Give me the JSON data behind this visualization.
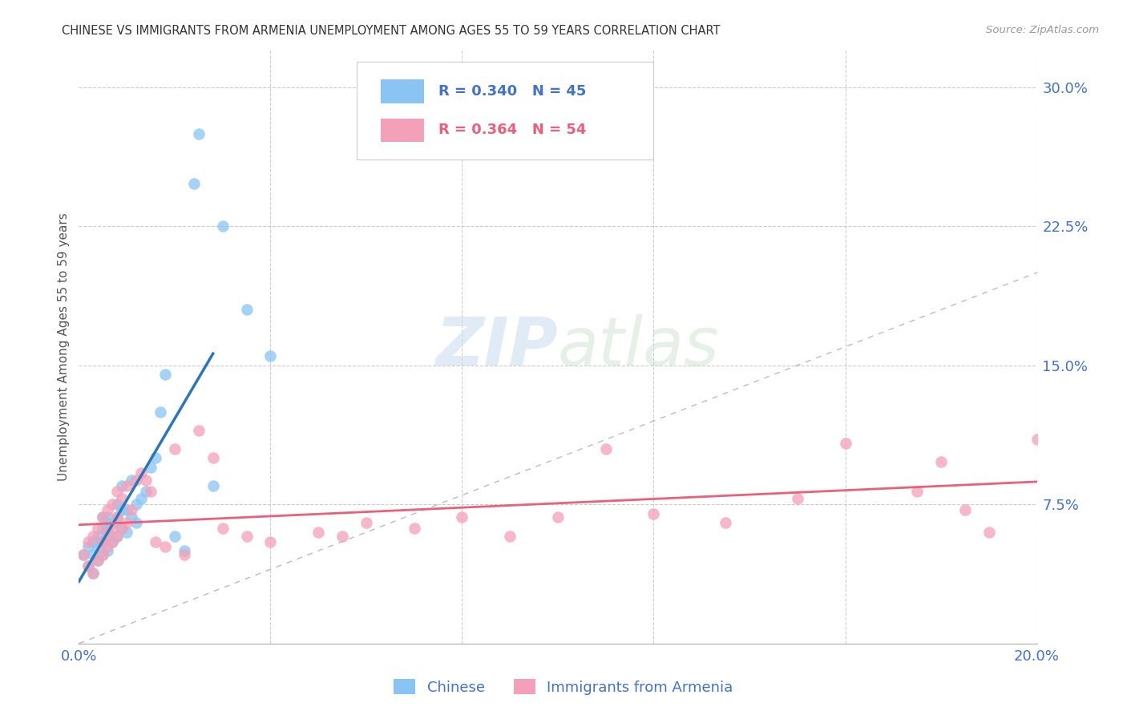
{
  "title": "CHINESE VS IMMIGRANTS FROM ARMENIA UNEMPLOYMENT AMONG AGES 55 TO 59 YEARS CORRELATION CHART",
  "source": "Source: ZipAtlas.com",
  "ylabel": "Unemployment Among Ages 55 to 59 years",
  "xlim": [
    0.0,
    0.2
  ],
  "ylim": [
    0.0,
    0.32
  ],
  "xticks": [
    0.0,
    0.04,
    0.08,
    0.12,
    0.16,
    0.2
  ],
  "xticklabels": [
    "0.0%",
    "",
    "",
    "",
    "",
    "20.0%"
  ],
  "yticks_right": [
    0.075,
    0.15,
    0.225,
    0.3
  ],
  "yticklabels_right": [
    "7.5%",
    "15.0%",
    "22.5%",
    "30.0%"
  ],
  "color_chinese": "#89C4F4",
  "color_armenia": "#F4A0B8",
  "color_blue_line": "#2E75B6",
  "color_pink_line": "#E8607A",
  "color_axis_labels": "#4472C4",
  "legend_R_chinese": "0.340",
  "legend_N_chinese": "45",
  "legend_R_armenia": "0.364",
  "legend_N_armenia": "54",
  "chinese_x": [
    0.001,
    0.002,
    0.002,
    0.003,
    0.003,
    0.003,
    0.004,
    0.004,
    0.004,
    0.005,
    0.005,
    0.005,
    0.005,
    0.006,
    0.006,
    0.006,
    0.006,
    0.007,
    0.007,
    0.008,
    0.008,
    0.008,
    0.009,
    0.009,
    0.009,
    0.01,
    0.01,
    0.011,
    0.011,
    0.012,
    0.012,
    0.013,
    0.014,
    0.015,
    0.016,
    0.017,
    0.018,
    0.02,
    0.022,
    0.024,
    0.025,
    0.028,
    0.03,
    0.035,
    0.04
  ],
  "chinese_y": [
    0.048,
    0.042,
    0.052,
    0.038,
    0.048,
    0.055,
    0.045,
    0.052,
    0.058,
    0.048,
    0.055,
    0.062,
    0.068,
    0.05,
    0.058,
    0.062,
    0.068,
    0.055,
    0.065,
    0.058,
    0.068,
    0.075,
    0.062,
    0.072,
    0.085,
    0.06,
    0.072,
    0.068,
    0.088,
    0.065,
    0.075,
    0.078,
    0.082,
    0.095,
    0.1,
    0.125,
    0.145,
    0.058,
    0.05,
    0.248,
    0.275,
    0.085,
    0.225,
    0.18,
    0.155
  ],
  "armenia_x": [
    0.001,
    0.002,
    0.002,
    0.003,
    0.003,
    0.004,
    0.004,
    0.005,
    0.005,
    0.005,
    0.006,
    0.006,
    0.006,
    0.007,
    0.007,
    0.007,
    0.008,
    0.008,
    0.008,
    0.009,
    0.009,
    0.01,
    0.01,
    0.011,
    0.012,
    0.013,
    0.014,
    0.015,
    0.016,
    0.018,
    0.02,
    0.022,
    0.025,
    0.028,
    0.03,
    0.035,
    0.04,
    0.05,
    0.055,
    0.06,
    0.07,
    0.08,
    0.09,
    0.1,
    0.11,
    0.12,
    0.135,
    0.15,
    0.16,
    0.175,
    0.18,
    0.185,
    0.19,
    0.2
  ],
  "armenia_y": [
    0.048,
    0.042,
    0.055,
    0.038,
    0.058,
    0.045,
    0.062,
    0.048,
    0.055,
    0.068,
    0.052,
    0.06,
    0.072,
    0.055,
    0.062,
    0.075,
    0.058,
    0.068,
    0.082,
    0.062,
    0.078,
    0.065,
    0.085,
    0.072,
    0.088,
    0.092,
    0.088,
    0.082,
    0.055,
    0.052,
    0.105,
    0.048,
    0.115,
    0.1,
    0.062,
    0.058,
    0.055,
    0.06,
    0.058,
    0.065,
    0.062,
    0.068,
    0.058,
    0.068,
    0.105,
    0.07,
    0.065,
    0.078,
    0.108,
    0.082,
    0.098,
    0.072,
    0.06,
    0.11
  ]
}
